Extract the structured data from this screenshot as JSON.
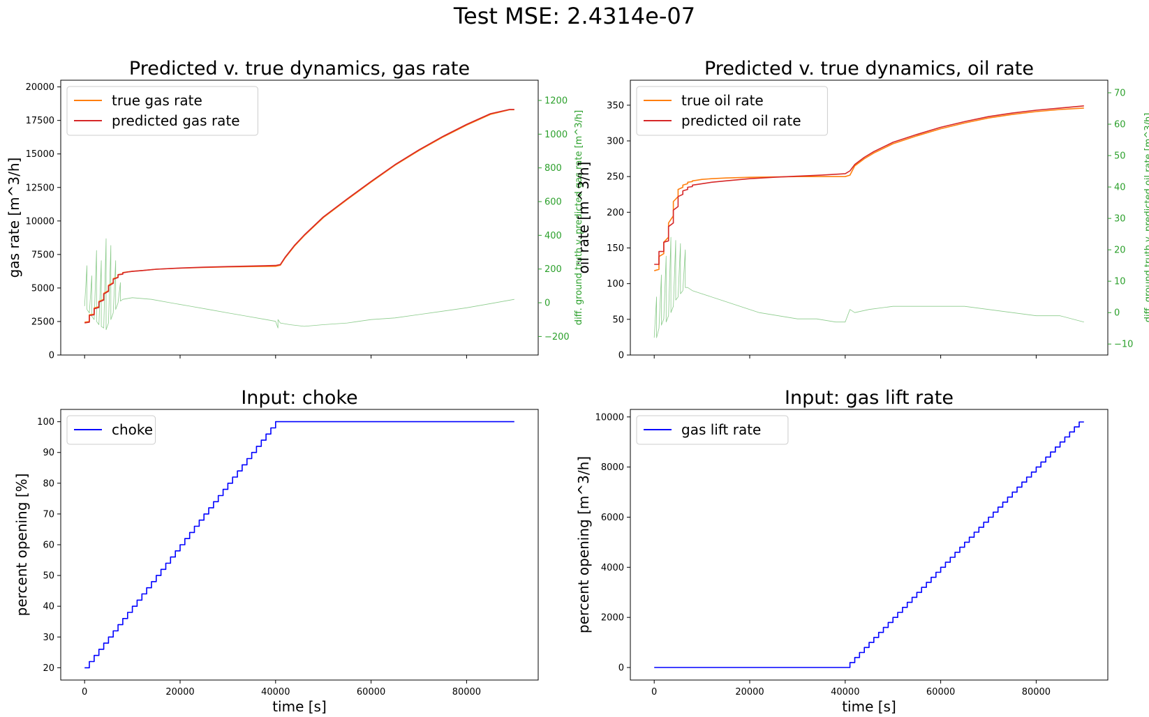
{
  "figure": {
    "suptitle": "Test MSE: 2.4314e-07"
  },
  "colors": {
    "true": "#ff7f0e",
    "pred": "#d62728",
    "diff": "#2ca02c",
    "input": "#0000ff"
  },
  "chart_data": [
    {
      "id": "gas",
      "type": "line",
      "title": "Predicted v. true dynamics, gas rate",
      "xlabel": "",
      "ylabel": "gas rate [m^3/h]",
      "y2label": "diff. ground truth v. predicted gas rate [m^3/h]",
      "xlim": [
        -5000,
        95000
      ],
      "ylim": [
        0,
        20500
      ],
      "y2lim": [
        -310,
        1320
      ],
      "xticks": [
        0,
        20000,
        40000,
        60000,
        80000
      ],
      "xticklabels": [
        "",
        "",
        "",
        "",
        ""
      ],
      "yticks": [
        0,
        2500,
        5000,
        7500,
        10000,
        12500,
        15000,
        17500,
        20000
      ],
      "yticklabels": [
        "0",
        "2500",
        "5000",
        "7500",
        "10000",
        "12500",
        "15000",
        "17500",
        "20000"
      ],
      "y2ticks": [
        -200,
        0,
        200,
        400,
        600,
        800,
        1000,
        1200
      ],
      "y2ticklabels": [
        "−200",
        "0",
        "200",
        "400",
        "600",
        "800",
        "1000",
        "1200"
      ],
      "legend_loc": "upper-left",
      "grid": false,
      "series": [
        {
          "name": "true gas rate",
          "color": "#ff7f0e",
          "axis": "left",
          "x": [
            0,
            1000,
            1000,
            2000,
            2000,
            3000,
            3000,
            4000,
            4000,
            5000,
            5000,
            6000,
            6000,
            7000,
            7000,
            8000,
            8000,
            9000,
            10000,
            12000,
            15000,
            20000,
            25000,
            30000,
            35000,
            40000,
            41000,
            42000,
            44000,
            46000,
            50000,
            55000,
            60000,
            65000,
            70000,
            75000,
            80000,
            85000,
            89000,
            90000
          ],
          "y": [
            2450,
            2500,
            3000,
            3050,
            3500,
            3600,
            4000,
            4150,
            4600,
            4800,
            5200,
            5400,
            5700,
            5800,
            6000,
            6050,
            6150,
            6200,
            6250,
            6300,
            6400,
            6480,
            6530,
            6570,
            6600,
            6620,
            6700,
            7250,
            8150,
            8900,
            10250,
            11600,
            12900,
            14150,
            15250,
            16250,
            17150,
            17950,
            18300,
            18300
          ]
        },
        {
          "name": "predicted gas rate",
          "color": "#d62728",
          "axis": "left",
          "x": [
            0,
            1000,
            1000,
            2000,
            2000,
            3000,
            3000,
            4000,
            4000,
            5000,
            5000,
            6000,
            6000,
            7000,
            7000,
            8000,
            8000,
            9000,
            10000,
            12000,
            15000,
            20000,
            25000,
            30000,
            35000,
            40000,
            41000,
            42000,
            44000,
            46000,
            50000,
            55000,
            60000,
            65000,
            70000,
            75000,
            80000,
            85000,
            89000,
            90000
          ],
          "y": [
            2400,
            2450,
            2950,
            3000,
            3450,
            3550,
            3950,
            4100,
            4550,
            4750,
            5150,
            5350,
            5650,
            5780,
            5980,
            6030,
            6130,
            6190,
            6240,
            6300,
            6400,
            6490,
            6550,
            6600,
            6640,
            6680,
            6750,
            7300,
            8200,
            8950,
            10300,
            11650,
            12950,
            14200,
            15300,
            16300,
            17200,
            18000,
            18320,
            18320
          ]
        },
        {
          "name": "",
          "color": "#2ca02c",
          "axis": "right",
          "x": [
            0,
            500,
            500,
            1000,
            1500,
            1500,
            2000,
            2500,
            2500,
            3000,
            3500,
            3500,
            4000,
            4500,
            4500,
            5000,
            5500,
            5500,
            6000,
            6500,
            6500,
            7000,
            7500,
            7500,
            8000,
            10000,
            14000,
            18000,
            22000,
            26000,
            30000,
            34000,
            38000,
            40000,
            40500,
            40500,
            41000,
            43000,
            46000,
            50000,
            55000,
            60000,
            65000,
            70000,
            75000,
            80000,
            85000,
            90000
          ],
          "y": [
            -20,
            220,
            -40,
            -60,
            160,
            -80,
            -100,
            310,
            -110,
            -130,
            250,
            -140,
            -150,
            380,
            -160,
            -120,
            340,
            -100,
            -60,
            250,
            -40,
            0,
            120,
            10,
            20,
            30,
            20,
            0,
            -20,
            -40,
            -60,
            -80,
            -100,
            -110,
            -150,
            -100,
            -120,
            -130,
            -140,
            -130,
            -120,
            -100,
            -90,
            -70,
            -50,
            -30,
            -5,
            20
          ]
        }
      ]
    },
    {
      "id": "oil",
      "type": "line",
      "title": "Predicted v. true dynamics, oil rate",
      "xlabel": "",
      "ylabel": "oil rate [m^3/h]",
      "y2label": "diff. ground truth v. predicted oil rate [m^3/h]",
      "xlim": [
        -5000,
        95000
      ],
      "ylim": [
        0,
        385
      ],
      "y2lim": [
        -13.5,
        74
      ],
      "xticks": [
        0,
        20000,
        40000,
        60000,
        80000
      ],
      "xticklabels": [
        "",
        "",
        "",
        "",
        ""
      ],
      "yticks": [
        0,
        50,
        100,
        150,
        200,
        250,
        300,
        350
      ],
      "yticklabels": [
        "0",
        "50",
        "100",
        "150",
        "200",
        "250",
        "300",
        "350"
      ],
      "y2ticks": [
        -10,
        0,
        10,
        20,
        30,
        40,
        50,
        60,
        70
      ],
      "y2ticklabels": [
        "−10",
        "0",
        "10",
        "20",
        "30",
        "40",
        "50",
        "60",
        "70"
      ],
      "legend_loc": "upper-left",
      "grid": false,
      "series": [
        {
          "name": "true oil rate",
          "color": "#ff7f0e",
          "axis": "left",
          "x": [
            0,
            1000,
            1000,
            2000,
            2000,
            3000,
            3000,
            4000,
            4000,
            5000,
            5000,
            6000,
            6000,
            7000,
            7000,
            8000,
            8000,
            9000,
            10000,
            12000,
            15000,
            20000,
            25000,
            30000,
            35000,
            40000,
            41000,
            42000,
            44000,
            46000,
            50000,
            55000,
            60000,
            65000,
            70000,
            75000,
            80000,
            85000,
            90000
          ],
          "y": [
            118,
            120,
            138,
            142,
            158,
            165,
            185,
            195,
            215,
            222,
            232,
            235,
            238,
            240,
            242,
            243,
            244,
            245,
            246,
            247,
            248,
            249,
            249.5,
            250,
            250,
            250,
            252,
            265,
            275,
            283,
            296,
            307,
            317,
            325,
            332,
            337,
            341,
            344,
            346
          ]
        },
        {
          "name": "predicted oil rate",
          "color": "#d62728",
          "axis": "left",
          "x": [
            0,
            1000,
            1000,
            2000,
            2000,
            3000,
            3000,
            4000,
            4000,
            5000,
            5000,
            6000,
            6000,
            7000,
            7000,
            8000,
            8000,
            9000,
            10000,
            12000,
            15000,
            20000,
            25000,
            30000,
            35000,
            40000,
            41000,
            42000,
            44000,
            46000,
            50000,
            55000,
            60000,
            65000,
            70000,
            75000,
            80000,
            85000,
            90000
          ],
          "y": [
            127,
            127,
            145,
            145,
            158,
            160,
            180,
            185,
            203,
            208,
            222,
            225,
            230,
            232,
            235,
            236,
            238,
            239,
            240,
            242,
            244,
            247,
            249,
            250.5,
            252,
            254,
            258,
            267,
            277,
            285,
            298,
            309,
            319,
            327,
            334,
            339,
            343,
            346,
            349
          ]
        },
        {
          "name": "",
          "color": "#2ca02c",
          "axis": "right",
          "x": [
            0,
            500,
            500,
            1000,
            1500,
            1500,
            2000,
            2500,
            2500,
            3000,
            3500,
            3500,
            4000,
            4500,
            4500,
            5000,
            5500,
            5500,
            6000,
            6500,
            6500,
            7000,
            8000,
            10000,
            14000,
            18000,
            22000,
            26000,
            30000,
            34000,
            38000,
            40000,
            41000,
            42000,
            45000,
            50000,
            55000,
            60000,
            65000,
            70000,
            75000,
            80000,
            85000,
            90000
          ],
          "y": [
            -8,
            5,
            -8,
            -5,
            12,
            -4,
            -2,
            18,
            -3,
            -1,
            24,
            0,
            2,
            23,
            4,
            5,
            22,
            6,
            7,
            20,
            8,
            8,
            7,
            6,
            4,
            2,
            0,
            -1,
            -2,
            -2,
            -3,
            -3,
            1,
            0,
            1,
            2,
            2,
            2,
            2,
            1,
            0,
            -1,
            -1,
            -3
          ]
        }
      ]
    },
    {
      "id": "choke",
      "type": "line",
      "title": "Input: choke",
      "xlabel": "time [s]",
      "ylabel": "percent opening [%]",
      "xlim": [
        -5000,
        95000
      ],
      "ylim": [
        16,
        104
      ],
      "xticks": [
        0,
        20000,
        40000,
        60000,
        80000
      ],
      "xticklabels": [
        "0",
        "20000",
        "40000",
        "60000",
        "80000"
      ],
      "yticks": [
        20,
        30,
        40,
        50,
        60,
        70,
        80,
        90,
        100
      ],
      "yticklabels": [
        "20",
        "30",
        "40",
        "50",
        "60",
        "70",
        "80",
        "90",
        "100"
      ],
      "legend_loc": "upper-left",
      "grid": false,
      "series": [
        {
          "name": "choke",
          "color": "#0000ff",
          "axis": "left",
          "step": true,
          "x": [
            0,
            1000,
            2000,
            3000,
            4000,
            5000,
            6000,
            7000,
            8000,
            9000,
            10000,
            11000,
            12000,
            13000,
            14000,
            15000,
            16000,
            17000,
            18000,
            19000,
            20000,
            21000,
            22000,
            23000,
            24000,
            25000,
            26000,
            27000,
            28000,
            29000,
            30000,
            31000,
            32000,
            33000,
            34000,
            35000,
            36000,
            37000,
            38000,
            39000,
            40000,
            90000
          ],
          "y": [
            20,
            22,
            24,
            26,
            28,
            30,
            32,
            34,
            36,
            38,
            40,
            42,
            44,
            46,
            48,
            50,
            52,
            54,
            56,
            58,
            60,
            62,
            64,
            66,
            68,
            70,
            72,
            74,
            76,
            78,
            80,
            82,
            84,
            86,
            88,
            90,
            92,
            94,
            96,
            98,
            100,
            100
          ]
        }
      ]
    },
    {
      "id": "gaslift",
      "type": "line",
      "title": "Input: gas lift rate",
      "xlabel": "time [s]",
      "ylabel": "percent opening [m^3/h]",
      "xlim": [
        -5000,
        95000
      ],
      "ylim": [
        -500,
        10300
      ],
      "xticks": [
        0,
        20000,
        40000,
        60000,
        80000
      ],
      "xticklabels": [
        "0",
        "20000",
        "40000",
        "60000",
        "80000"
      ],
      "yticks": [
        0,
        2000,
        4000,
        6000,
        8000,
        10000
      ],
      "yticklabels": [
        "0",
        "2000",
        "4000",
        "6000",
        "8000",
        "10000"
      ],
      "legend_loc": "upper-left",
      "grid": false,
      "series": [
        {
          "name": "gas lift rate",
          "color": "#0000ff",
          "axis": "left",
          "step": true,
          "x": [
            0,
            41000,
            42000,
            43000,
            44000,
            45000,
            46000,
            47000,
            48000,
            49000,
            50000,
            51000,
            52000,
            53000,
            54000,
            55000,
            56000,
            57000,
            58000,
            59000,
            60000,
            61000,
            62000,
            63000,
            64000,
            65000,
            66000,
            67000,
            68000,
            69000,
            70000,
            71000,
            72000,
            73000,
            74000,
            75000,
            76000,
            77000,
            78000,
            79000,
            80000,
            81000,
            82000,
            83000,
            84000,
            85000,
            86000,
            87000,
            88000,
            89000,
            90000
          ],
          "y": [
            0,
            200,
            400,
            600,
            800,
            1000,
            1200,
            1400,
            1600,
            1800,
            2000,
            2200,
            2400,
            2600,
            2800,
            3000,
            3200,
            3400,
            3600,
            3800,
            4000,
            4200,
            4400,
            4600,
            4800,
            5000,
            5200,
            5400,
            5600,
            5800,
            6000,
            6200,
            6400,
            6600,
            6800,
            7000,
            7200,
            7400,
            7600,
            7800,
            8000,
            8200,
            8400,
            8600,
            8800,
            9000,
            9200,
            9400,
            9600,
            9800,
            9800
          ]
        }
      ]
    }
  ]
}
